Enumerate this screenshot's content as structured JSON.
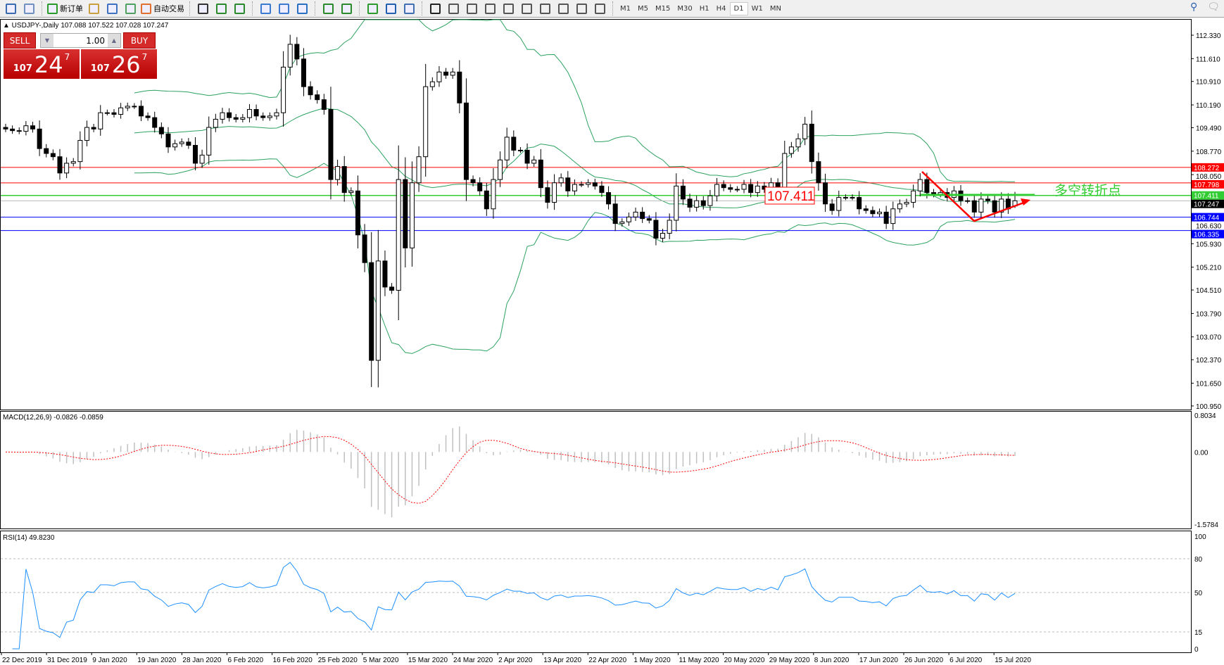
{
  "toolbar": {
    "new_order": "新订单",
    "auto_trading": "自动交易",
    "timeframes": [
      "M1",
      "M5",
      "M15",
      "M30",
      "H1",
      "H4",
      "D1",
      "W1",
      "MN"
    ],
    "active_timeframe": "D1",
    "icons": [
      "window-list-icon",
      "navigator-icon",
      "new-order-icon",
      "market-watch-icon",
      "data-window-icon",
      "signals-icon",
      "auto-trading-icon",
      "bar-chart-icon",
      "candlestick-icon",
      "line-chart-icon",
      "zoom-in-icon",
      "zoom-out-icon",
      "tile-windows-icon",
      "chart-shift-icon",
      "auto-scroll-icon",
      "indicators-icon",
      "periods-icon",
      "templates-icon",
      "cursor-icon",
      "crosshair-icon",
      "vertical-line-icon",
      "horizontal-line-icon",
      "trendline-icon",
      "equidistant-channel-icon",
      "fibonacci-icon",
      "text-icon",
      "text-label-icon",
      "arrows-icon"
    ],
    "right_icons": [
      "search-icon",
      "chat-icon"
    ]
  },
  "chart": {
    "title": "USDJPY-,Daily",
    "ohlc": "107.088 107.522 107.028 107.247"
  },
  "trade_panel": {
    "sell": "SELL",
    "buy": "BUY",
    "lots": "1.00",
    "sell_price": {
      "prefix": "107",
      "main": "24",
      "sup": "7"
    },
    "buy_price": {
      "prefix": "107",
      "main": "26",
      "sup": "7"
    }
  },
  "colors": {
    "bull": "#ffffff",
    "bear": "#000000",
    "bands": "#2ca25f",
    "macd_signal": "#ff0000",
    "rsi": "#1e90ff"
  },
  "chart_data": [
    {
      "type": "candlestick",
      "symbol": "USDJPY-",
      "timeframe": "Daily",
      "ylim": [
        100.95,
        112.33
      ],
      "closes": [
        109.45,
        109.4,
        109.38,
        109.55,
        109.45,
        108.85,
        108.7,
        108.6,
        108.1,
        108.4,
        108.45,
        109.1,
        109.5,
        109.45,
        109.95,
        109.95,
        109.9,
        110.1,
        110.15,
        110.15,
        109.85,
        109.8,
        109.5,
        109.3,
        108.9,
        109.0,
        109.05,
        108.95,
        108.4,
        108.65,
        109.5,
        109.75,
        109.95,
        109.8,
        109.75,
        109.8,
        110.05,
        109.85,
        109.8,
        109.85,
        109.95,
        111.35,
        112.05,
        111.6,
        110.75,
        110.5,
        110.35,
        110.05,
        107.9,
        108.3,
        107.5,
        107.55,
        106.2,
        105.35,
        102.35,
        105.4,
        104.6,
        104.5,
        107.9,
        105.8,
        107.8,
        108.6,
        110.75,
        110.9,
        111.2,
        111.1,
        111.2,
        110.25,
        107.9,
        107.8,
        107.55,
        107.0,
        107.9,
        108.5,
        109.2,
        108.8,
        108.8,
        108.4,
        108.5,
        107.65,
        107.2,
        107.8,
        107.95,
        107.55,
        107.75,
        107.75,
        107.8,
        107.7,
        107.5,
        107.15,
        106.55,
        106.6,
        106.75,
        106.9,
        106.7,
        106.65,
        106.1,
        106.25,
        106.65,
        107.7,
        107.3,
        107.05,
        107.25,
        107.1,
        107.4,
        107.75,
        107.65,
        107.6,
        107.6,
        107.75,
        107.5,
        107.7,
        107.6,
        107.8,
        107.65,
        108.7,
        108.9,
        109.15,
        109.6,
        108.45,
        107.8,
        107.15,
        106.95,
        107.35,
        107.35,
        107.35,
        107.0,
        106.95,
        106.85,
        106.9,
        106.55,
        107.0,
        107.15,
        107.2,
        107.55,
        107.9,
        107.5,
        107.45,
        107.5,
        107.35,
        107.55,
        107.25,
        107.25,
        106.9,
        107.3,
        107.25,
        106.9,
        107.3,
        107.0,
        107.247
      ],
      "last_bar": {
        "open": 107.088,
        "high": 107.522,
        "low": 107.028,
        "close": 107.247
      },
      "overlay": "Bollinger Bands",
      "y_ticks": [
        "112.330",
        "111.610",
        "110.910",
        "110.190",
        "109.490",
        "108.770",
        "108.050",
        "106.630",
        "105.930",
        "105.210",
        "104.510",
        "103.790",
        "103.070",
        "102.370",
        "101.650",
        "100.950"
      ],
      "x_ticks": [
        "22 Dec 2019",
        "31 Dec 2019",
        "9 Jan 2020",
        "19 Jan 2020",
        "28 Jan 2020",
        "6 Feb 2020",
        "16 Feb 2020",
        "25 Feb 2020",
        "5 Mar 2020",
        "15 Mar 2020",
        "24 Mar 2020",
        "2 Apr 2020",
        "13 Apr 2020",
        "22 Apr 2020",
        "1 May 2020",
        "11 May 2020",
        "20 May 2020",
        "29 May 2020",
        "8 Jun 2020",
        "17 Jun 2020",
        "26 Jun 2020",
        "6 Jul 2020",
        "15 Jul 2020"
      ],
      "hlines": [
        {
          "value": 108.272,
          "label": "108.272",
          "color": "#ff0000"
        },
        {
          "value": 107.798,
          "label": "107.798",
          "color": "#ff0000"
        },
        {
          "value": 107.411,
          "label": "107.411",
          "color": "#32cd32"
        },
        {
          "value": 107.247,
          "label": "107.247",
          "color": "#000000"
        },
        {
          "value": 106.744,
          "label": "106.744",
          "color": "#0000ff"
        },
        {
          "value": 106.335,
          "label": "106.335",
          "color": "#0000ff"
        }
      ],
      "annotations": {
        "price_box": "107.411",
        "note": "多空转折点"
      }
    },
    {
      "type": "bar",
      "name": "MACD(12,26,9)",
      "label": "MACD(12,26,9) -0.0826 -0.0859",
      "ylim": [
        -1.5784,
        0.8034
      ],
      "y_ticks": [
        "0.8034",
        "0.00",
        "-1.5784"
      ]
    },
    {
      "type": "line",
      "name": "RSI(14)",
      "label": "RSI(14) 49.8230",
      "ylim": [
        0,
        100
      ],
      "levels": [
        80,
        50,
        15
      ],
      "y_ticks": [
        "100",
        "80",
        "50",
        "15",
        "0"
      ]
    }
  ]
}
